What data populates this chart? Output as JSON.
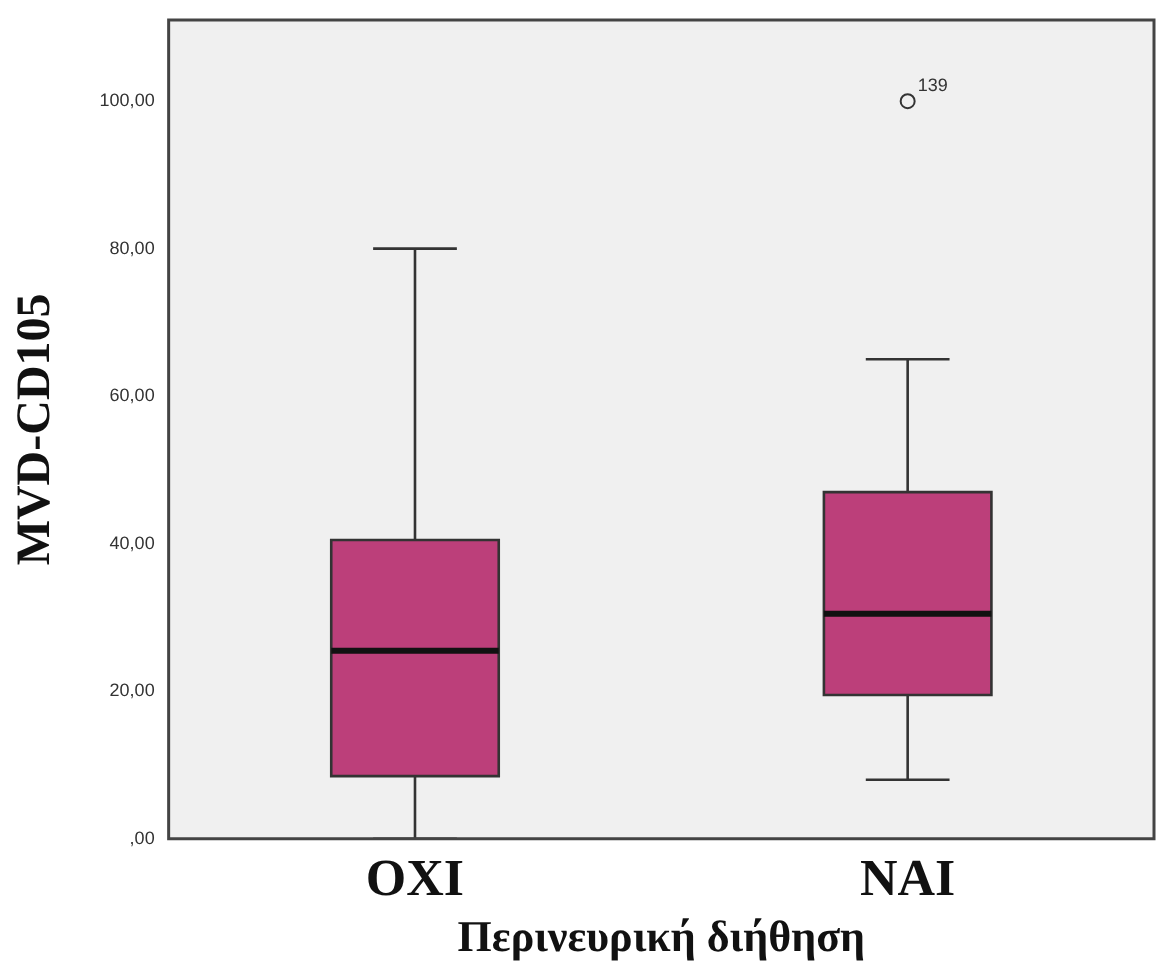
{
  "chart_data": {
    "type": "box",
    "xlabel": "Περινευρική διήθηση",
    "ylabel": "MVD-CD105",
    "categories": [
      "OXI",
      "NAI"
    ],
    "boxes": [
      {
        "low": 0,
        "q1": 8.5,
        "median": 25.5,
        "q3": 40.5,
        "high": 80
      },
      {
        "low": 8,
        "q1": 19.5,
        "median": 30.5,
        "q3": 47,
        "high": 65,
        "outliers": [
          100
        ]
      }
    ],
    "color": "#bc3f7a",
    "ylim": [
      0,
      111
    ],
    "yticks": [
      {
        "value": 0,
        "label": ",00"
      },
      {
        "value": 20,
        "label": "20,00"
      },
      {
        "value": 40,
        "label": "40,00"
      },
      {
        "value": 60,
        "label": "60,00"
      },
      {
        "value": 80,
        "label": "80,00"
      },
      {
        "value": 100,
        "label": "100,00"
      }
    ],
    "annotations": [
      "139"
    ]
  }
}
